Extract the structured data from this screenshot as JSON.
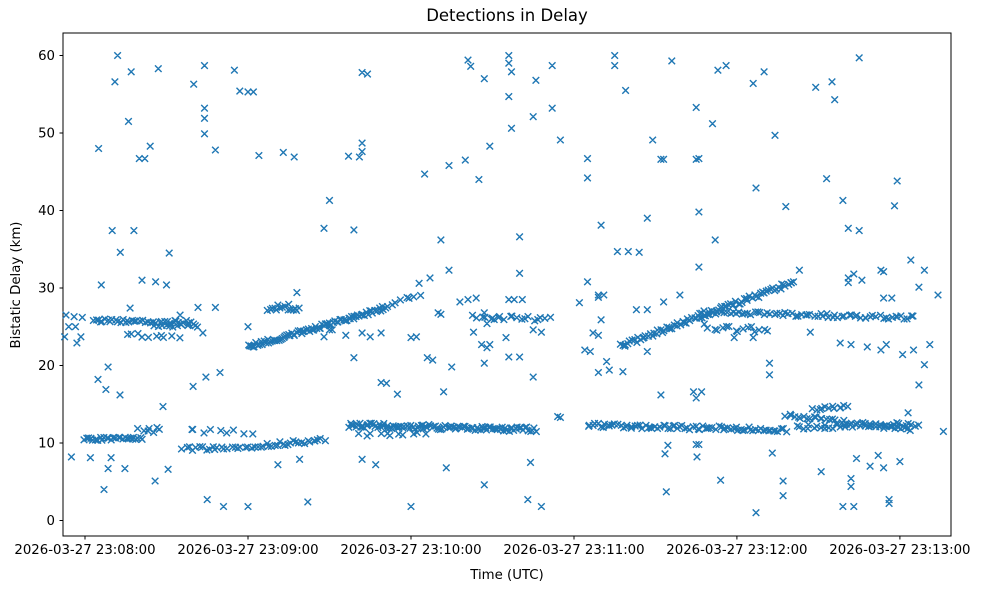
{
  "chart_data": {
    "type": "scatter",
    "title": "Detections in Delay",
    "xlabel": "Time (UTC)",
    "ylabel": "Bistatic Delay (km)",
    "marker": "x",
    "marker_color": "#1f77b4",
    "grid": false,
    "legend": null,
    "x_axis": {
      "tick_labels": [
        "2026-03-27 23:08:00",
        "2026-03-27 23:09:00",
        "2026-03-27 23:10:00",
        "2026-03-27 23:11:00",
        "2026-03-27 23:12:00",
        "2026-03-27 23:13:00"
      ],
      "tick_seconds": [
        0,
        60,
        120,
        180,
        240,
        300
      ],
      "range_seconds": [
        -8.1,
        318.8
      ]
    },
    "y_axis": {
      "tick_labels": [
        "0",
        "10",
        "20",
        "30",
        "40",
        "50",
        "60"
      ],
      "ticks": [
        0,
        10,
        20,
        30,
        40,
        50,
        60
      ],
      "range": [
        -2.0,
        62.9
      ]
    },
    "tracks_note": "Dense detection tracks: t in seconds after 23:08:00 UTC, km = bistatic delay; n points spread evenly between endpoints with +/- spread jitter",
    "tracks": [
      {
        "t": [
          3,
          40
        ],
        "km": [
          25.8,
          25.55
        ],
        "n": 42,
        "spread": 0.22
      },
      {
        "t": [
          25,
          42
        ],
        "km": [
          25.15,
          25.1
        ],
        "n": 12,
        "spread": 0.18
      },
      {
        "t": [
          15,
          34
        ],
        "km": [
          23.9,
          23.85
        ],
        "n": 10,
        "spread": 0.3
      },
      {
        "t": [
          60,
          110
        ],
        "km": [
          22.4,
          27.4
        ],
        "n": 85,
        "spread": 0.28
      },
      {
        "t": [
          67,
          79
        ],
        "km": [
          27.35,
          27.4
        ],
        "n": 14,
        "spread": 0.3
      },
      {
        "t": [
          110,
          123
        ],
        "km": [
          27.5,
          29.2
        ],
        "n": 9,
        "spread": 0.25
      },
      {
        "t": [
          143,
          171
        ],
        "km": [
          26.2,
          26.0
        ],
        "n": 20,
        "spread": 0.3
      },
      {
        "t": [
          197,
          261
        ],
        "km": [
          22.5,
          30.8
        ],
        "n": 88,
        "spread": 0.3
      },
      {
        "t": [
          226,
          305
        ],
        "km": [
          26.9,
          26.15
        ],
        "n": 70,
        "spread": 0.25
      },
      {
        "t": [
          228,
          252
        ],
        "km": [
          25.0,
          24.5
        ],
        "n": 16,
        "spread": 0.45
      },
      {
        "t": [
          0,
          21
        ],
        "km": [
          10.5,
          10.6
        ],
        "n": 30,
        "spread": 0.2
      },
      {
        "t": [
          20,
          28
        ],
        "km": [
          11.9,
          11.6
        ],
        "n": 7,
        "spread": 0.35
      },
      {
        "t": [
          36,
          61
        ],
        "km": [
          9.3,
          9.25
        ],
        "n": 22,
        "spread": 0.25
      },
      {
        "t": [
          38,
          61
        ],
        "km": [
          11.6,
          11.35
        ],
        "n": 9,
        "spread": 0.3
      },
      {
        "t": [
          63,
          88
        ],
        "km": [
          9.6,
          10.4
        ],
        "n": 26,
        "spread": 0.28
      },
      {
        "t": [
          97,
          166
        ],
        "km": [
          12.3,
          11.75
        ],
        "n": 105,
        "spread": 0.33
      },
      {
        "t": [
          100,
          126
        ],
        "km": [
          11.05,
          11.3
        ],
        "n": 11,
        "spread": 0.25
      },
      {
        "t": [
          185,
          258
        ],
        "km": [
          12.3,
          11.7
        ],
        "n": 80,
        "spread": 0.28
      },
      {
        "t": [
          258,
          304
        ],
        "km": [
          13.6,
          11.7
        ],
        "n": 42,
        "spread": 0.25
      },
      {
        "t": [
          262,
          307
        ],
        "km": [
          12.05,
          12.4
        ],
        "n": 38,
        "spread": 0.28
      },
      {
        "t": [
          268,
          281
        ],
        "km": [
          14.35,
          14.6
        ],
        "n": 12,
        "spread": 0.25
      }
    ],
    "clutter_points": [
      [
        -7,
        26.5
      ],
      [
        -4,
        26.3
      ],
      [
        -1,
        26.2
      ],
      [
        -6,
        25.0
      ],
      [
        -3.5,
        25.0
      ],
      [
        -7.5,
        23.7
      ],
      [
        -1.5,
        23.7
      ],
      [
        -3,
        22.9
      ],
      [
        -5,
        8.2
      ],
      [
        2,
        8.1
      ],
      [
        9.6,
        8.1
      ],
      [
        5,
        48.0
      ],
      [
        11,
        56.6
      ],
      [
        12,
        60.0
      ],
      [
        16,
        51.5
      ],
      [
        17,
        57.9
      ],
      [
        20,
        46.7
      ],
      [
        22,
        46.7
      ],
      [
        24,
        48.3
      ],
      [
        27,
        58.3
      ],
      [
        40,
        56.3
      ],
      [
        44,
        58.7
      ],
      [
        44,
        53.2
      ],
      [
        44,
        51.9
      ],
      [
        44,
        49.9
      ],
      [
        48,
        47.8
      ],
      [
        55,
        58.1
      ],
      [
        57,
        55.4
      ],
      [
        60,
        55.3
      ],
      [
        62,
        55.3
      ],
      [
        64,
        47.1
      ],
      [
        10,
        37.4
      ],
      [
        18,
        37.4
      ],
      [
        13,
        34.6
      ],
      [
        31,
        34.5
      ],
      [
        6,
        30.4
      ],
      [
        21,
        31.0
      ],
      [
        26,
        30.8
      ],
      [
        30,
        30.4
      ],
      [
        16.6,
        27.4
      ],
      [
        41.6,
        27.5
      ],
      [
        48,
        27.5
      ],
      [
        35,
        26.5
      ],
      [
        43.4,
        24.2
      ],
      [
        60,
        25.0
      ],
      [
        8.5,
        19.8
      ],
      [
        4.8,
        18.2
      ],
      [
        7.7,
        16.9
      ],
      [
        12.9,
        16.2
      ],
      [
        28.7,
        14.7
      ],
      [
        39.8,
        17.3
      ],
      [
        44.5,
        18.5
      ],
      [
        49.7,
        19.1
      ],
      [
        8.5,
        6.7
      ],
      [
        14.7,
        6.7
      ],
      [
        30.6,
        6.6
      ],
      [
        25.8,
        5.1
      ],
      [
        7,
        4.0
      ],
      [
        45,
        2.7
      ],
      [
        51,
        1.8
      ],
      [
        60,
        1.8
      ],
      [
        73,
        47.5
      ],
      [
        77,
        46.9
      ],
      [
        97,
        47.0
      ],
      [
        101,
        46.9
      ],
      [
        102,
        48.7
      ],
      [
        102,
        47.6
      ],
      [
        102,
        57.8
      ],
      [
        104,
        57.6
      ],
      [
        71,
        27.8
      ],
      [
        75,
        27.9
      ],
      [
        78,
        29.4
      ],
      [
        88,
        37.7
      ],
      [
        99,
        37.5
      ],
      [
        90,
        41.3
      ],
      [
        90,
        24.6
      ],
      [
        91,
        24.6
      ],
      [
        96,
        23.9
      ],
      [
        102,
        24.2
      ],
      [
        105,
        23.7
      ],
      [
        109,
        24.2
      ],
      [
        88,
        23.7
      ],
      [
        99,
        21.0
      ],
      [
        109,
        17.8
      ],
      [
        111,
        17.7
      ],
      [
        115,
        16.3
      ],
      [
        71,
        7.2
      ],
      [
        79,
        7.9
      ],
      [
        102,
        7.9
      ],
      [
        107,
        7.2
      ],
      [
        82,
        2.4
      ],
      [
        120,
        1.8
      ],
      [
        123,
        30.6
      ],
      [
        127,
        31.3
      ],
      [
        134,
        32.3
      ],
      [
        160,
        31.9
      ],
      [
        131,
        36.2
      ],
      [
        160,
        36.6
      ],
      [
        134,
        45.8
      ],
      [
        140,
        46.5
      ],
      [
        141,
        59.4
      ],
      [
        142,
        58.6
      ],
      [
        147,
        57.0
      ],
      [
        149,
        48.3
      ],
      [
        156,
        60.0
      ],
      [
        156,
        59.0
      ],
      [
        157,
        57.9
      ],
      [
        156,
        54.7
      ],
      [
        157,
        50.6
      ],
      [
        165,
        52.1
      ],
      [
        166,
        56.8
      ],
      [
        172,
        58.7
      ],
      [
        172,
        53.2
      ],
      [
        175,
        49.1
      ],
      [
        125,
        44.7
      ],
      [
        145,
        44.0
      ],
      [
        130,
        26.8
      ],
      [
        131,
        26.6
      ],
      [
        138,
        28.2
      ],
      [
        141,
        28.5
      ],
      [
        144,
        28.7
      ],
      [
        147,
        26.8
      ],
      [
        150,
        26.1
      ],
      [
        148,
        25.4
      ],
      [
        143,
        24.3
      ],
      [
        122,
        23.7
      ],
      [
        120,
        23.6
      ],
      [
        146,
        22.7
      ],
      [
        149,
        22.7
      ],
      [
        155,
        23.6
      ],
      [
        148,
        22.3
      ],
      [
        165,
        24.6
      ],
      [
        168,
        24.3
      ],
      [
        126,
        21.0
      ],
      [
        128,
        20.7
      ],
      [
        135,
        19.8
      ],
      [
        147,
        20.3
      ],
      [
        156,
        21.1
      ],
      [
        160,
        21.1
      ],
      [
        165,
        18.5
      ],
      [
        132,
        16.6
      ],
      [
        156,
        28.5
      ],
      [
        158,
        28.5
      ],
      [
        161,
        28.5
      ],
      [
        133,
        6.8
      ],
      [
        147,
        4.6
      ],
      [
        163,
        2.7
      ],
      [
        164,
        7.5
      ],
      [
        168,
        1.8
      ],
      [
        174,
        13.4
      ],
      [
        175,
        13.3
      ],
      [
        185,
        46.7
      ],
      [
        185,
        44.2
      ],
      [
        195,
        60.0
      ],
      [
        195,
        58.7
      ],
      [
        199,
        55.5
      ],
      [
        209,
        49.1
      ],
      [
        212,
        46.6
      ],
      [
        213,
        46.6
      ],
      [
        216,
        59.3
      ],
      [
        225,
        46.6
      ],
      [
        226,
        46.7
      ],
      [
        225,
        53.3
      ],
      [
        231,
        51.2
      ],
      [
        233,
        58.1
      ],
      [
        236,
        58.7
      ],
      [
        182,
        28.1
      ],
      [
        185,
        30.8
      ],
      [
        189,
        29.1
      ],
      [
        191,
        29.1
      ],
      [
        203,
        27.2
      ],
      [
        207,
        27.2
      ],
      [
        213,
        28.2
      ],
      [
        189,
        28.8
      ],
      [
        190,
        25.9
      ],
      [
        196,
        34.7
      ],
      [
        200,
        34.7
      ],
      [
        204,
        34.6
      ],
      [
        190,
        38.1
      ],
      [
        207,
        39.0
      ],
      [
        226,
        39.8
      ],
      [
        232,
        36.2
      ],
      [
        226,
        32.7
      ],
      [
        219,
        29.1
      ],
      [
        184,
        22.0
      ],
      [
        186,
        21.8
      ],
      [
        187,
        24.2
      ],
      [
        189,
        23.9
      ],
      [
        192,
        20.5
      ],
      [
        193,
        19.4
      ],
      [
        198,
        19.2
      ],
      [
        189,
        19.1
      ],
      [
        207,
        21.8
      ],
      [
        212,
        16.2
      ],
      [
        224,
        16.6
      ],
      [
        227,
        16.6
      ],
      [
        225,
        15.8
      ],
      [
        213.5,
        8.6
      ],
      [
        214.6,
        9.7
      ],
      [
        225,
        9.8
      ],
      [
        226,
        9.8
      ],
      [
        225.3,
        8.2
      ],
      [
        234,
        5.2
      ],
      [
        214,
        3.7
      ],
      [
        246,
        56.4
      ],
      [
        250,
        57.9
      ],
      [
        254,
        49.7
      ],
      [
        269,
        55.9
      ],
      [
        273,
        44.1
      ],
      [
        275,
        56.6
      ],
      [
        276,
        54.3
      ],
      [
        285,
        59.7
      ],
      [
        258,
        40.5
      ],
      [
        279,
        41.3
      ],
      [
        247,
        42.9
      ],
      [
        298,
        40.6
      ],
      [
        299,
        43.8
      ],
      [
        239,
        23.6
      ],
      [
        246,
        23.6
      ],
      [
        252,
        20.3
      ],
      [
        252,
        18.8
      ],
      [
        263,
        32.3
      ],
      [
        267,
        24.3
      ],
      [
        281,
        31.3
      ],
      [
        283,
        31.8
      ],
      [
        281,
        30.7
      ],
      [
        286,
        31.0
      ],
      [
        293,
        32.3
      ],
      [
        294,
        32.1
      ],
      [
        294,
        28.7
      ],
      [
        297,
        28.7
      ],
      [
        281,
        37.7
      ],
      [
        285,
        37.4
      ],
      [
        278,
        22.9
      ],
      [
        282,
        22.7
      ],
      [
        288,
        22.4
      ],
      [
        293,
        22.0
      ],
      [
        295,
        22.7
      ],
      [
        301,
        21.4
      ],
      [
        247,
        1.0
      ],
      [
        253,
        8.7
      ],
      [
        257,
        5.1
      ],
      [
        257,
        3.2
      ],
      [
        271,
        6.3
      ],
      [
        279,
        1.8
      ],
      [
        283,
        1.8
      ],
      [
        282,
        5.4
      ],
      [
        282,
        4.4
      ],
      [
        284,
        8.0
      ],
      [
        292,
        8.4
      ],
      [
        289,
        7.0
      ],
      [
        294,
        6.8
      ],
      [
        300,
        7.6
      ],
      [
        296,
        2.7
      ],
      [
        296,
        2.2
      ],
      [
        304,
        33.6
      ],
      [
        309,
        32.3
      ],
      [
        307,
        30.1
      ],
      [
        314,
        29.1
      ],
      [
        305,
        22.0
      ],
      [
        311,
        22.7
      ],
      [
        309,
        20.1
      ],
      [
        307,
        17.5
      ],
      [
        303,
        13.9
      ],
      [
        316,
        11.5
      ]
    ]
  }
}
